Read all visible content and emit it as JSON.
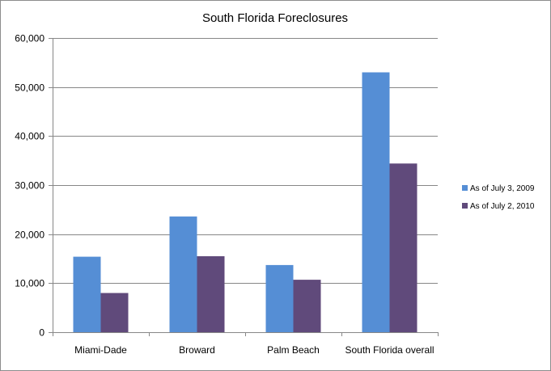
{
  "chart_data": {
    "type": "bar",
    "title": "South Florida Foreclosures",
    "xlabel": "",
    "ylabel": "",
    "categories": [
      "Miami-Dade",
      "Broward",
      "Palm Beach",
      "South Florida overall"
    ],
    "series": [
      {
        "name": "As of July 3, 2009",
        "values": [
          15400,
          23600,
          13700,
          53000
        ],
        "color": "#558ed5"
      },
      {
        "name": "As of July 2, 2010",
        "values": [
          8000,
          15500,
          10700,
          34400
        ],
        "color": "#604a7b"
      }
    ],
    "ylim": [
      0,
      60000
    ],
    "yticks": [
      "0",
      "10,000",
      "20,000",
      "30,000",
      "40,000",
      "50,000",
      "60,000"
    ],
    "grid": true,
    "legend": "right"
  }
}
